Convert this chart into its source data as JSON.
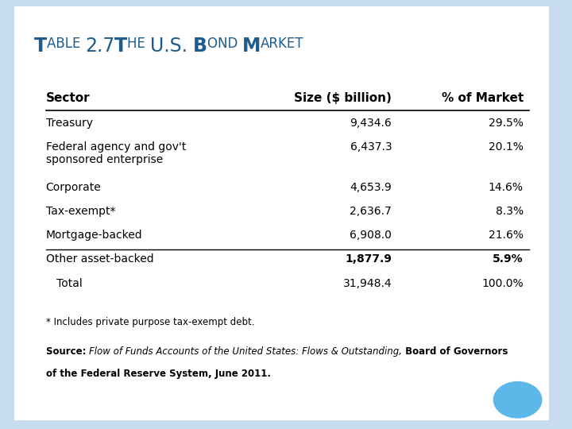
{
  "title_color": "#1F5C8B",
  "bg_color": "#C8DCF0",
  "header_row": [
    "Sector",
    "Size ($ billion)",
    "% of Market"
  ],
  "rows": [
    [
      "Treasury",
      "9,434.6",
      "29.5%"
    ],
    [
      "Federal agency and gov't\nsponsored enterprise",
      "6,437.3",
      "20.1%"
    ],
    [
      "Corporate",
      "4,653.9",
      "14.6%"
    ],
    [
      "Tax-exempt*",
      "2,636.7",
      "8.3%"
    ],
    [
      "Mortgage-backed",
      "6,908.0",
      "21.6%"
    ],
    [
      "Other asset-backed",
      "1,877.9",
      "5.9%"
    ]
  ],
  "total_row": [
    "   Total",
    "31,948.4",
    "100.0%"
  ],
  "footnote1": "* Includes private purpose tax-exempt debt.",
  "footnote2_bold": "Source: ",
  "footnote2_italic": "Flow of Funds Accounts of the United States: Flows & Outstanding,",
  "footnote2_bold2": " Board of Governors",
  "footnote3_bold": "of the Federal Reserve System, June 2011.",
  "circle_color": "#5BB8E8",
  "title_segments": [
    [
      "T",
      17,
      true
    ],
    [
      "ABLE ",
      12,
      false
    ],
    [
      "2.7",
      17,
      false
    ],
    [
      "T",
      17,
      true
    ],
    [
      "HE ",
      12,
      false
    ],
    [
      "U.S. ",
      17,
      false
    ],
    [
      "B",
      17,
      true
    ],
    [
      "OND ",
      12,
      false
    ],
    [
      "M",
      17,
      true
    ],
    [
      "ARKET",
      12,
      false
    ]
  ]
}
